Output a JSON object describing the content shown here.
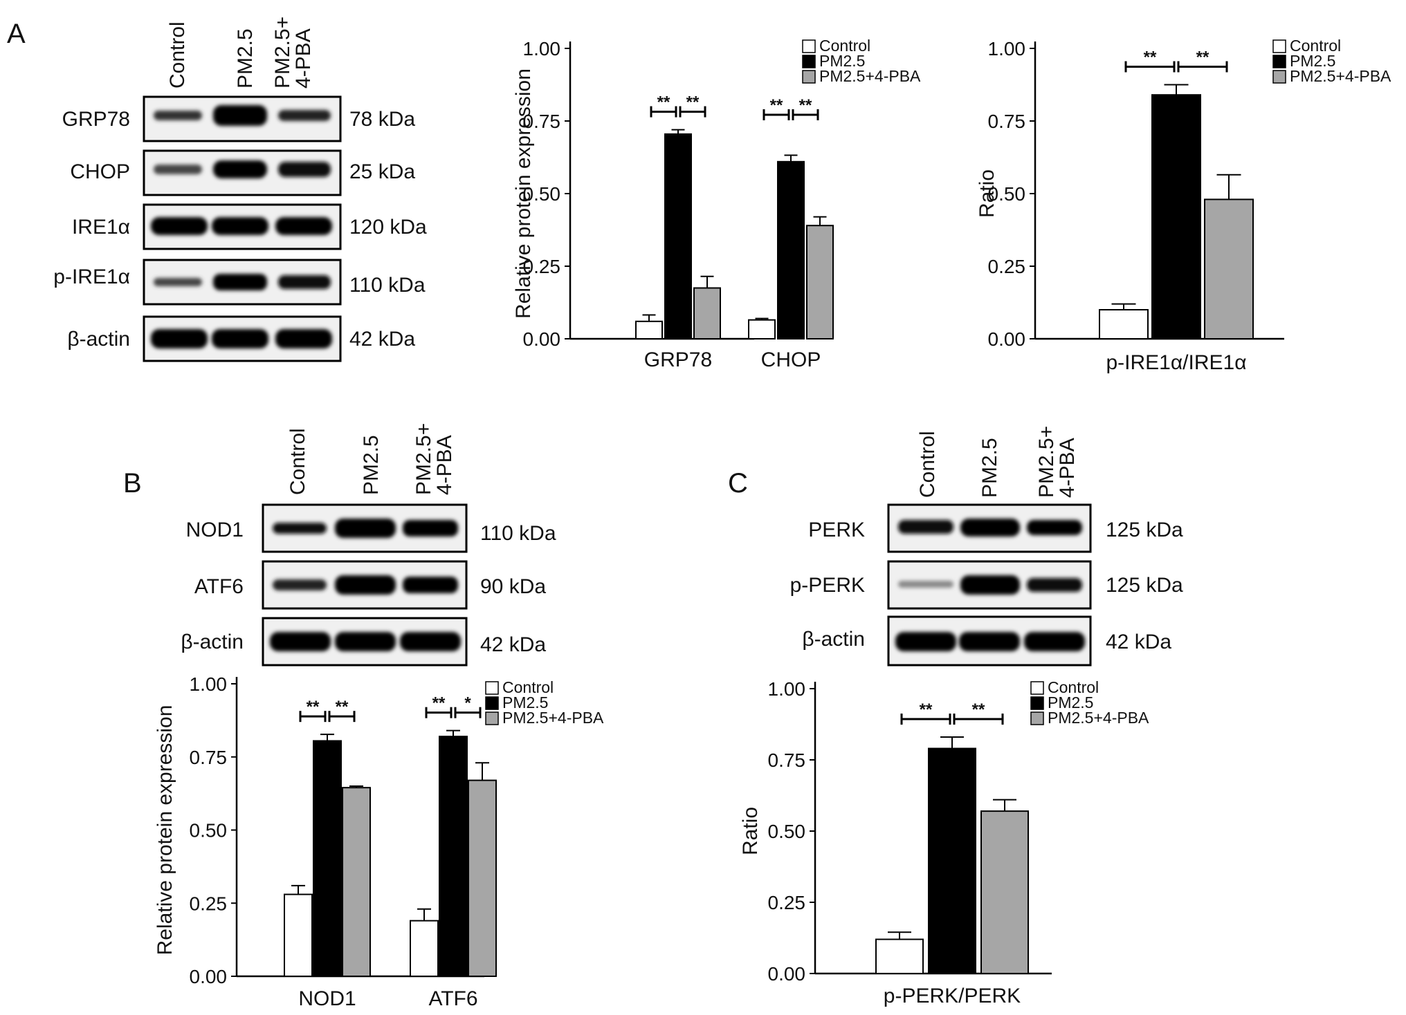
{
  "panels": {
    "a": "A",
    "b": "B",
    "c": "C"
  },
  "lanes": [
    "Control",
    "PM2.5",
    "PM2.5+",
    "4-PBA"
  ],
  "blots": {
    "a": {
      "bands": [
        "GRP78",
        "CHOP",
        "IRE1α",
        "p-IRE1α",
        "β-actin"
      ],
      "kda": [
        "78 kDa",
        "25 kDa",
        "120 kDa",
        "110 kDa",
        "42 kDa"
      ]
    },
    "b": {
      "bands": [
        "NOD1",
        "ATF6",
        "β-actin"
      ],
      "kda": [
        "110 kDa",
        "90 kDa",
        "42 kDa"
      ]
    },
    "c": {
      "bands": [
        "PERK",
        "p-PERK",
        "β-actin"
      ],
      "kda": [
        "125 kDa",
        "125 kDa",
        "42 kDa"
      ]
    }
  },
  "chart_data": [
    {
      "id": "a1",
      "type": "bar",
      "categories": [
        "GRP78",
        "CHOP"
      ],
      "ylabel": "Relative protein expression",
      "ylim": [
        0,
        1
      ],
      "yticks": [
        "0.00",
        "0.25",
        "0.50",
        "0.75",
        "1.00"
      ],
      "series": [
        {
          "name": "Control",
          "color": "#ffffff",
          "values": [
            0.06,
            0.065
          ],
          "err": [
            0.022,
            0.005
          ]
        },
        {
          "name": "PM2.5",
          "color": "#000000",
          "values": [
            0.705,
            0.61
          ],
          "err": [
            0.015,
            0.022
          ]
        },
        {
          "name": "PM2.5+4-PBA",
          "color": "#a6a6a6",
          "values": [
            0.175,
            0.39
          ],
          "err": [
            0.04,
            0.03
          ]
        }
      ],
      "significance": [
        [
          "**",
          "**"
        ],
        [
          "**",
          "**"
        ]
      ],
      "legend": "top-right"
    },
    {
      "id": "a2",
      "type": "bar",
      "categories": [
        "p-IRE1α/IRE1α"
      ],
      "ylabel": "Ratio",
      "ylim": [
        0,
        1
      ],
      "yticks": [
        "0.00",
        "0.25",
        "0.50",
        "0.75",
        "1.00"
      ],
      "series": [
        {
          "name": "Control",
          "color": "#ffffff",
          "values": [
            0.1
          ],
          "err": [
            0.02
          ]
        },
        {
          "name": "PM2.5",
          "color": "#000000",
          "values": [
            0.84
          ],
          "err": [
            0.035
          ]
        },
        {
          "name": "PM2.5+4-PBA",
          "color": "#a6a6a6",
          "values": [
            0.48
          ],
          "err": [
            0.085
          ]
        }
      ],
      "significance": [
        [
          "**",
          "**"
        ]
      ],
      "legend": "top-right"
    },
    {
      "id": "b",
      "type": "bar",
      "categories": [
        "NOD1",
        "ATF6"
      ],
      "ylabel": "Relative protein expression",
      "ylim": [
        0,
        1
      ],
      "yticks": [
        "0.00",
        "0.25",
        "0.50",
        "0.75",
        "1.00"
      ],
      "series": [
        {
          "name": "Control",
          "color": "#ffffff",
          "values": [
            0.28,
            0.19
          ],
          "err": [
            0.03,
            0.04
          ]
        },
        {
          "name": "PM2.5",
          "color": "#000000",
          "values": [
            0.805,
            0.82
          ],
          "err": [
            0.022,
            0.02
          ]
        },
        {
          "name": "PM2.5+4-PBA",
          "color": "#a6a6a6",
          "values": [
            0.645,
            0.67
          ],
          "err": [
            0.005,
            0.06
          ]
        }
      ],
      "significance": [
        [
          "**",
          "**"
        ],
        [
          "**",
          "*"
        ]
      ],
      "legend": "top-right"
    },
    {
      "id": "c",
      "type": "bar",
      "categories": [
        "p-PERK/PERK"
      ],
      "ylabel": "Ratio",
      "ylim": [
        0,
        1
      ],
      "yticks": [
        "0.00",
        "0.25",
        "0.50",
        "0.75",
        "1.00"
      ],
      "series": [
        {
          "name": "Control",
          "color": "#ffffff",
          "values": [
            0.12
          ],
          "err": [
            0.025
          ]
        },
        {
          "name": "PM2.5",
          "color": "#000000",
          "values": [
            0.79
          ],
          "err": [
            0.04
          ]
        },
        {
          "name": "PM2.5+4-PBA",
          "color": "#a6a6a6",
          "values": [
            0.57
          ],
          "err": [
            0.04
          ]
        }
      ],
      "significance": [
        [
          "**",
          "**"
        ]
      ],
      "legend": "top-right"
    }
  ]
}
